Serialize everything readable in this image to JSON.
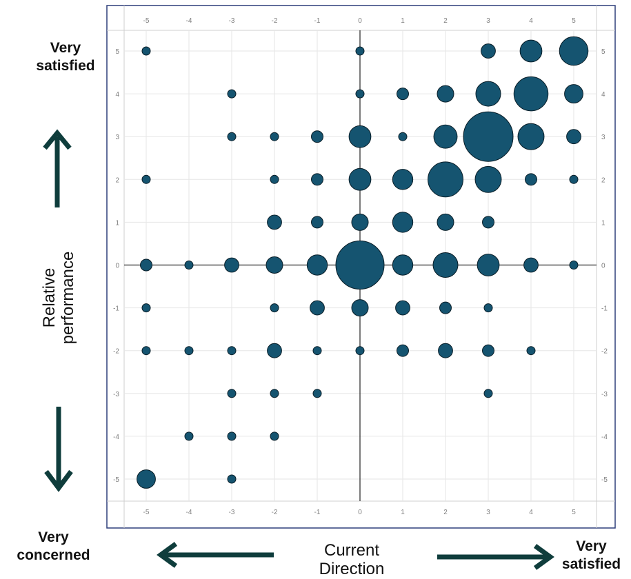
{
  "labels": {
    "top_left": [
      "Very",
      "satisfied"
    ],
    "bottom_left": [
      "Very",
      "concerned"
    ],
    "bottom_right": [
      "Very",
      "satisfied"
    ],
    "y_axis_title": [
      "Relative",
      "performance"
    ],
    "x_axis_title": [
      "Current",
      "Direction"
    ]
  },
  "colors": {
    "bubble": "#155470",
    "arrow": "#0f3d3c",
    "frame": "#2e3f7a",
    "grid": "#e6e6e6",
    "tick_text": "#808080",
    "axis_line": "#222222"
  },
  "chart_data": {
    "type": "scatter",
    "subtype": "bubble",
    "title": "",
    "xlabel": "Current Direction",
    "ylabel": "Relative performance",
    "xlim": [
      -5,
      5
    ],
    "ylim": [
      -5,
      5
    ],
    "x_ticks": [
      "-5",
      "-4",
      "-3",
      "-2",
      "-1",
      "0",
      "1",
      "2",
      "3",
      "4",
      "5"
    ],
    "y_ticks": [
      "5",
      "4",
      "3",
      "2",
      "1",
      "0",
      "-1",
      "-2",
      "-3",
      "-4",
      "-5"
    ],
    "grid": true,
    "points": [
      {
        "x": -5,
        "y": 5,
        "size": 1
      },
      {
        "x": 0,
        "y": 5,
        "size": 1
      },
      {
        "x": 3,
        "y": 5,
        "size": 3
      },
      {
        "x": 4,
        "y": 5,
        "size": 7
      },
      {
        "x": 5,
        "y": 5,
        "size": 12
      },
      {
        "x": -3,
        "y": 4,
        "size": 1
      },
      {
        "x": 0,
        "y": 4,
        "size": 1
      },
      {
        "x": 1,
        "y": 4,
        "size": 2
      },
      {
        "x": 2,
        "y": 4,
        "size": 4
      },
      {
        "x": 3,
        "y": 4,
        "size": 9
      },
      {
        "x": 4,
        "y": 4,
        "size": 17
      },
      {
        "x": 5,
        "y": 4,
        "size": 5
      },
      {
        "x": -3,
        "y": 3,
        "size": 1
      },
      {
        "x": -2,
        "y": 3,
        "size": 1
      },
      {
        "x": -1,
        "y": 3,
        "size": 2
      },
      {
        "x": 0,
        "y": 3,
        "size": 7
      },
      {
        "x": 1,
        "y": 3,
        "size": 1
      },
      {
        "x": 2,
        "y": 3,
        "size": 8
      },
      {
        "x": 3,
        "y": 3,
        "size": 36
      },
      {
        "x": 4,
        "y": 3,
        "size": 10
      },
      {
        "x": 5,
        "y": 3,
        "size": 3
      },
      {
        "x": -5,
        "y": 2,
        "size": 1
      },
      {
        "x": -2,
        "y": 2,
        "size": 1
      },
      {
        "x": -1,
        "y": 2,
        "size": 2
      },
      {
        "x": 0,
        "y": 2,
        "size": 7
      },
      {
        "x": 1,
        "y": 2,
        "size": 6
      },
      {
        "x": 2,
        "y": 2,
        "size": 18
      },
      {
        "x": 3,
        "y": 2,
        "size": 10
      },
      {
        "x": 4,
        "y": 2,
        "size": 2
      },
      {
        "x": 5,
        "y": 2,
        "size": 1
      },
      {
        "x": -2,
        "y": 1,
        "size": 3
      },
      {
        "x": -1,
        "y": 1,
        "size": 2
      },
      {
        "x": 0,
        "y": 1,
        "size": 4
      },
      {
        "x": 1,
        "y": 1,
        "size": 6
      },
      {
        "x": 2,
        "y": 1,
        "size": 4
      },
      {
        "x": 3,
        "y": 1,
        "size": 2
      },
      {
        "x": -5,
        "y": 0,
        "size": 2
      },
      {
        "x": -4,
        "y": 0,
        "size": 1
      },
      {
        "x": -3,
        "y": 0,
        "size": 3
      },
      {
        "x": -2,
        "y": 0,
        "size": 4
      },
      {
        "x": -1,
        "y": 0,
        "size": 6
      },
      {
        "x": 0,
        "y": 0,
        "size": 34
      },
      {
        "x": 1,
        "y": 0,
        "size": 6
      },
      {
        "x": 2,
        "y": 0,
        "size": 9
      },
      {
        "x": 3,
        "y": 0,
        "size": 7
      },
      {
        "x": 4,
        "y": 0,
        "size": 3
      },
      {
        "x": 5,
        "y": 0,
        "size": 1
      },
      {
        "x": -5,
        "y": -1,
        "size": 1
      },
      {
        "x": -2,
        "y": -1,
        "size": 1
      },
      {
        "x": -1,
        "y": -1,
        "size": 3
      },
      {
        "x": 0,
        "y": -1,
        "size": 4
      },
      {
        "x": 1,
        "y": -1,
        "size": 3
      },
      {
        "x": 2,
        "y": -1,
        "size": 2
      },
      {
        "x": 3,
        "y": -1,
        "size": 1
      },
      {
        "x": -5,
        "y": -2,
        "size": 1
      },
      {
        "x": -4,
        "y": -2,
        "size": 1
      },
      {
        "x": -3,
        "y": -2,
        "size": 1
      },
      {
        "x": -2,
        "y": -2,
        "size": 3
      },
      {
        "x": -1,
        "y": -2,
        "size": 1
      },
      {
        "x": 0,
        "y": -2,
        "size": 1
      },
      {
        "x": 1,
        "y": -2,
        "size": 2
      },
      {
        "x": 2,
        "y": -2,
        "size": 3
      },
      {
        "x": 3,
        "y": -2,
        "size": 2
      },
      {
        "x": 4,
        "y": -2,
        "size": 1
      },
      {
        "x": -3,
        "y": -3,
        "size": 1
      },
      {
        "x": -2,
        "y": -3,
        "size": 1
      },
      {
        "x": -1,
        "y": -3,
        "size": 1
      },
      {
        "x": 3,
        "y": -3,
        "size": 1
      },
      {
        "x": -4,
        "y": -4,
        "size": 1
      },
      {
        "x": -3,
        "y": -4,
        "size": 1
      },
      {
        "x": -2,
        "y": -4,
        "size": 1
      },
      {
        "x": -5,
        "y": -5,
        "size": 5
      },
      {
        "x": -3,
        "y": -5,
        "size": 1
      }
    ]
  }
}
